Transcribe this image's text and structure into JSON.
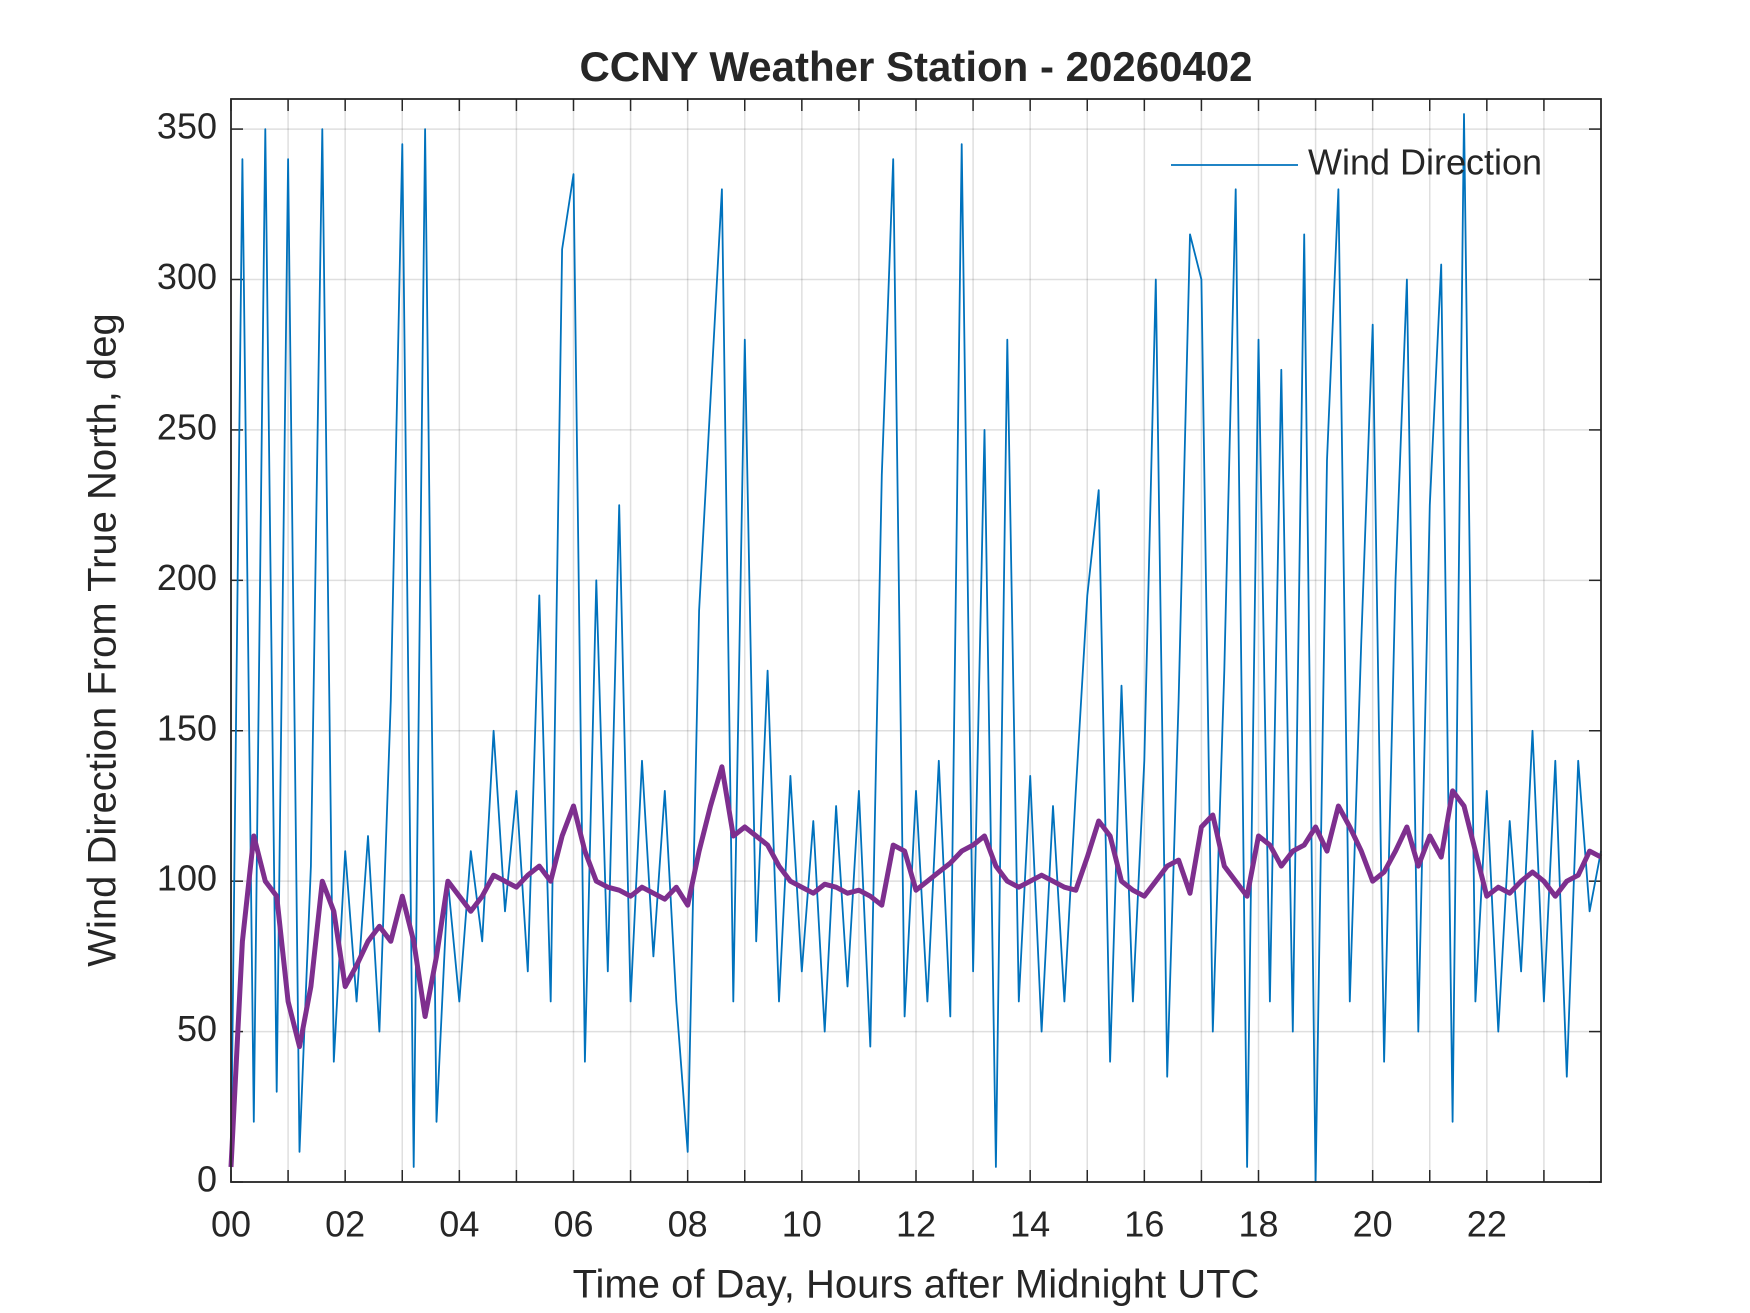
{
  "chart_data": {
    "type": "line",
    "title": "CCNY Weather Station - 20260402",
    "x_label": "Time of Day, Hours after Midnight UTC",
    "y_label": "Wind Direction From True North, deg",
    "x": [
      0,
      0.2,
      0.4,
      0.6,
      0.8,
      1,
      1.2,
      1.4,
      1.6,
      1.8,
      2,
      2.2,
      2.4,
      2.6,
      2.8,
      3,
      3.2,
      3.4,
      3.6,
      3.8,
      4,
      4.2,
      4.4,
      4.6,
      4.8,
      5,
      5.2,
      5.4,
      5.6,
      5.8,
      6,
      6.2,
      6.4,
      6.6,
      6.8,
      7,
      7.2,
      7.4,
      7.6,
      7.8,
      8,
      8.2,
      8.4,
      8.6,
      8.8,
      9,
      9.2,
      9.4,
      9.6,
      9.8,
      10,
      10.2,
      10.4,
      10.6,
      10.8,
      11,
      11.2,
      11.4,
      11.6,
      11.8,
      12,
      12.2,
      12.4,
      12.6,
      12.8,
      13,
      13.2,
      13.4,
      13.6,
      13.8,
      14,
      14.2,
      14.4,
      14.6,
      14.8,
      15,
      15.2,
      15.4,
      15.6,
      15.8,
      16,
      16.2,
      16.4,
      16.6,
      16.8,
      17,
      17.2,
      17.4,
      17.6,
      17.8,
      18,
      18.2,
      18.4,
      18.6,
      18.8,
      19,
      19.2,
      19.4,
      19.6,
      19.8,
      20,
      20.2,
      20.4,
      20.6,
      20.8,
      21,
      21.2,
      21.4,
      21.6,
      21.8,
      22,
      22.2,
      22.4,
      22.6,
      22.8,
      23,
      23.2,
      23.4,
      23.6,
      23.8,
      24
    ],
    "series": [
      {
        "name": "Wind Direction",
        "color": "#0072BD",
        "values": [
          5,
          340,
          20,
          350,
          30,
          340,
          10,
          105,
          350,
          40,
          110,
          60,
          115,
          50,
          160,
          345,
          5,
          350,
          20,
          100,
          60,
          110,
          80,
          150,
          90,
          130,
          70,
          195,
          60,
          310,
          335,
          40,
          200,
          70,
          225,
          60,
          140,
          75,
          130,
          60,
          10,
          190,
          260,
          330,
          60,
          280,
          80,
          170,
          60,
          135,
          70,
          120,
          50,
          125,
          65,
          130,
          45,
          235,
          340,
          55,
          130,
          60,
          140,
          55,
          345,
          70,
          250,
          5,
          280,
          60,
          135,
          50,
          125,
          60,
          130,
          195,
          230,
          40,
          165,
          60,
          140,
          300,
          35,
          160,
          315,
          300,
          50,
          170,
          330,
          5,
          280,
          60,
          270,
          50,
          315,
          0,
          240,
          330,
          60,
          180,
          285,
          40,
          200,
          300,
          50,
          225,
          305,
          20,
          355,
          60,
          130,
          50,
          120,
          70,
          150,
          60,
          140,
          35,
          140,
          90,
          110
        ]
      },
      {
        "color": "#7E2F8E",
        "values": [
          5,
          80,
          115,
          100,
          95,
          60,
          45,
          65,
          100,
          90,
          65,
          72,
          80,
          85,
          80,
          95,
          80,
          55,
          75,
          100,
          95,
          90,
          95,
          102,
          100,
          98,
          102,
          105,
          100,
          115,
          125,
          110,
          100,
          98,
          97,
          95,
          98,
          96,
          94,
          98,
          92,
          110,
          125,
          138,
          115,
          118,
          115,
          112,
          105,
          100,
          98,
          96,
          99,
          98,
          96,
          97,
          95,
          92,
          112,
          110,
          97,
          100,
          103,
          106,
          110,
          112,
          115,
          105,
          100,
          98,
          100,
          102,
          100,
          98,
          97,
          108,
          120,
          115,
          100,
          97,
          95,
          100,
          105,
          107,
          96,
          118,
          122,
          105,
          100,
          95,
          115,
          112,
          105,
          110,
          112,
          118,
          110,
          125,
          118,
          110,
          100,
          103,
          110,
          118,
          105,
          115,
          108,
          130,
          125,
          110,
          95,
          98,
          96,
          100,
          103,
          100,
          95,
          100,
          102,
          110,
          108
        ]
      }
    ],
    "xlim": [
      0,
      24
    ],
    "xticks": [
      {
        "value": 0,
        "label": "00"
      },
      {
        "value": 2,
        "label": "02"
      },
      {
        "value": 4,
        "label": "04"
      },
      {
        "value": 6,
        "label": "06"
      },
      {
        "value": 8,
        "label": "08"
      },
      {
        "value": 10,
        "label": "10"
      },
      {
        "value": 12,
        "label": "12"
      },
      {
        "value": 14,
        "label": "14"
      },
      {
        "value": 16,
        "label": "16"
      },
      {
        "value": 18,
        "label": "18"
      },
      {
        "value": 20,
        "label": "20"
      },
      {
        "value": 22,
        "label": "22"
      }
    ],
    "xminorticks": [
      1,
      3,
      5,
      7,
      9,
      11,
      13,
      15,
      17,
      19,
      21,
      23
    ],
    "ylim": [
      0,
      360
    ],
    "yticks": [
      0,
      50,
      100,
      150,
      200,
      250,
      300,
      350
    ],
    "grid": true,
    "legend": "northeast"
  }
}
